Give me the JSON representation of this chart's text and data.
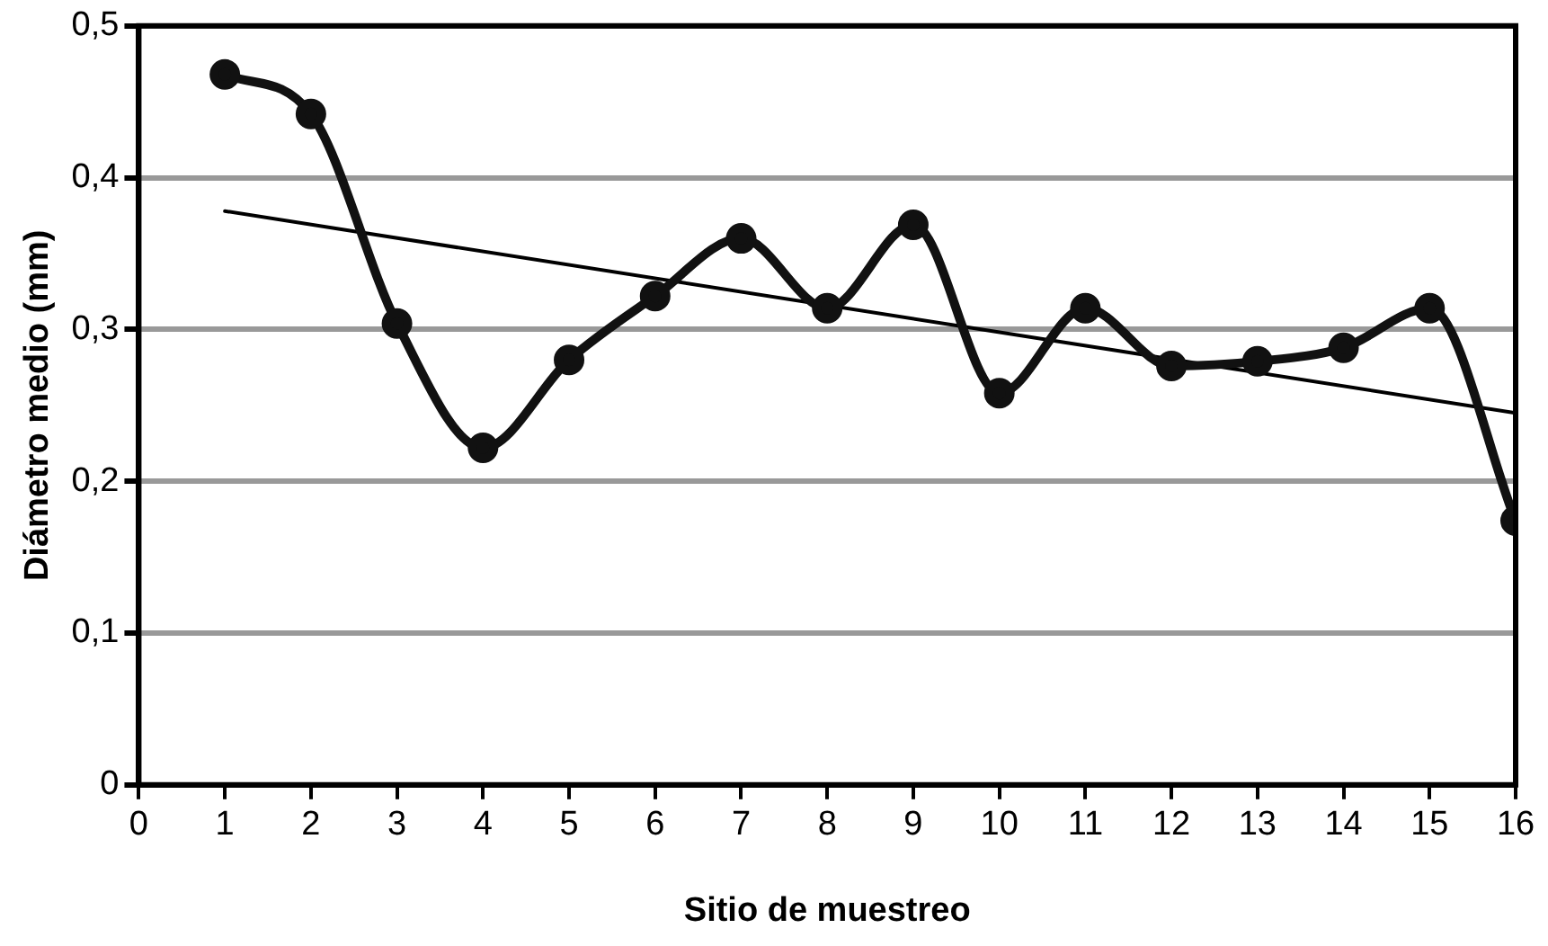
{
  "chart_data": {
    "type": "line",
    "xlabel": "Sitio de muestreo",
    "ylabel": "Diámetro medio (mm)",
    "x": [
      1,
      2,
      3,
      4,
      5,
      6,
      7,
      8,
      9,
      10,
      11,
      12,
      13,
      14,
      15,
      16
    ],
    "series": [
      {
        "color": "#111111",
        "marker": "circle",
        "values": [
          0.468,
          0.442,
          0.304,
          0.222,
          0.28,
          0.322,
          0.36,
          0.314,
          0.369,
          0.258,
          0.314,
          0.276,
          0.279,
          0.288,
          0.314,
          0.174
        ]
      },
      {
        "type": "line",
        "color": "#000000",
        "marker": "none",
        "x": [
          1,
          16
        ],
        "values": [
          0.378,
          0.245
        ]
      }
    ],
    "xlim": [
      0,
      16
    ],
    "xticks": [
      0,
      1,
      2,
      3,
      4,
      5,
      6,
      7,
      8,
      9,
      10,
      11,
      12,
      13,
      14,
      15,
      16
    ],
    "ylim": [
      0,
      0.5
    ],
    "yticks": [
      0,
      {
        "value": 0.1,
        "label": "0,1"
      },
      {
        "value": 0.2,
        "label": "0,2"
      },
      {
        "value": 0.3,
        "label": "0,3"
      },
      {
        "value": 0.4,
        "label": "0,4"
      },
      {
        "value": 0.5,
        "label": "0,5"
      }
    ],
    "grid": "y",
    "legend": false
  }
}
